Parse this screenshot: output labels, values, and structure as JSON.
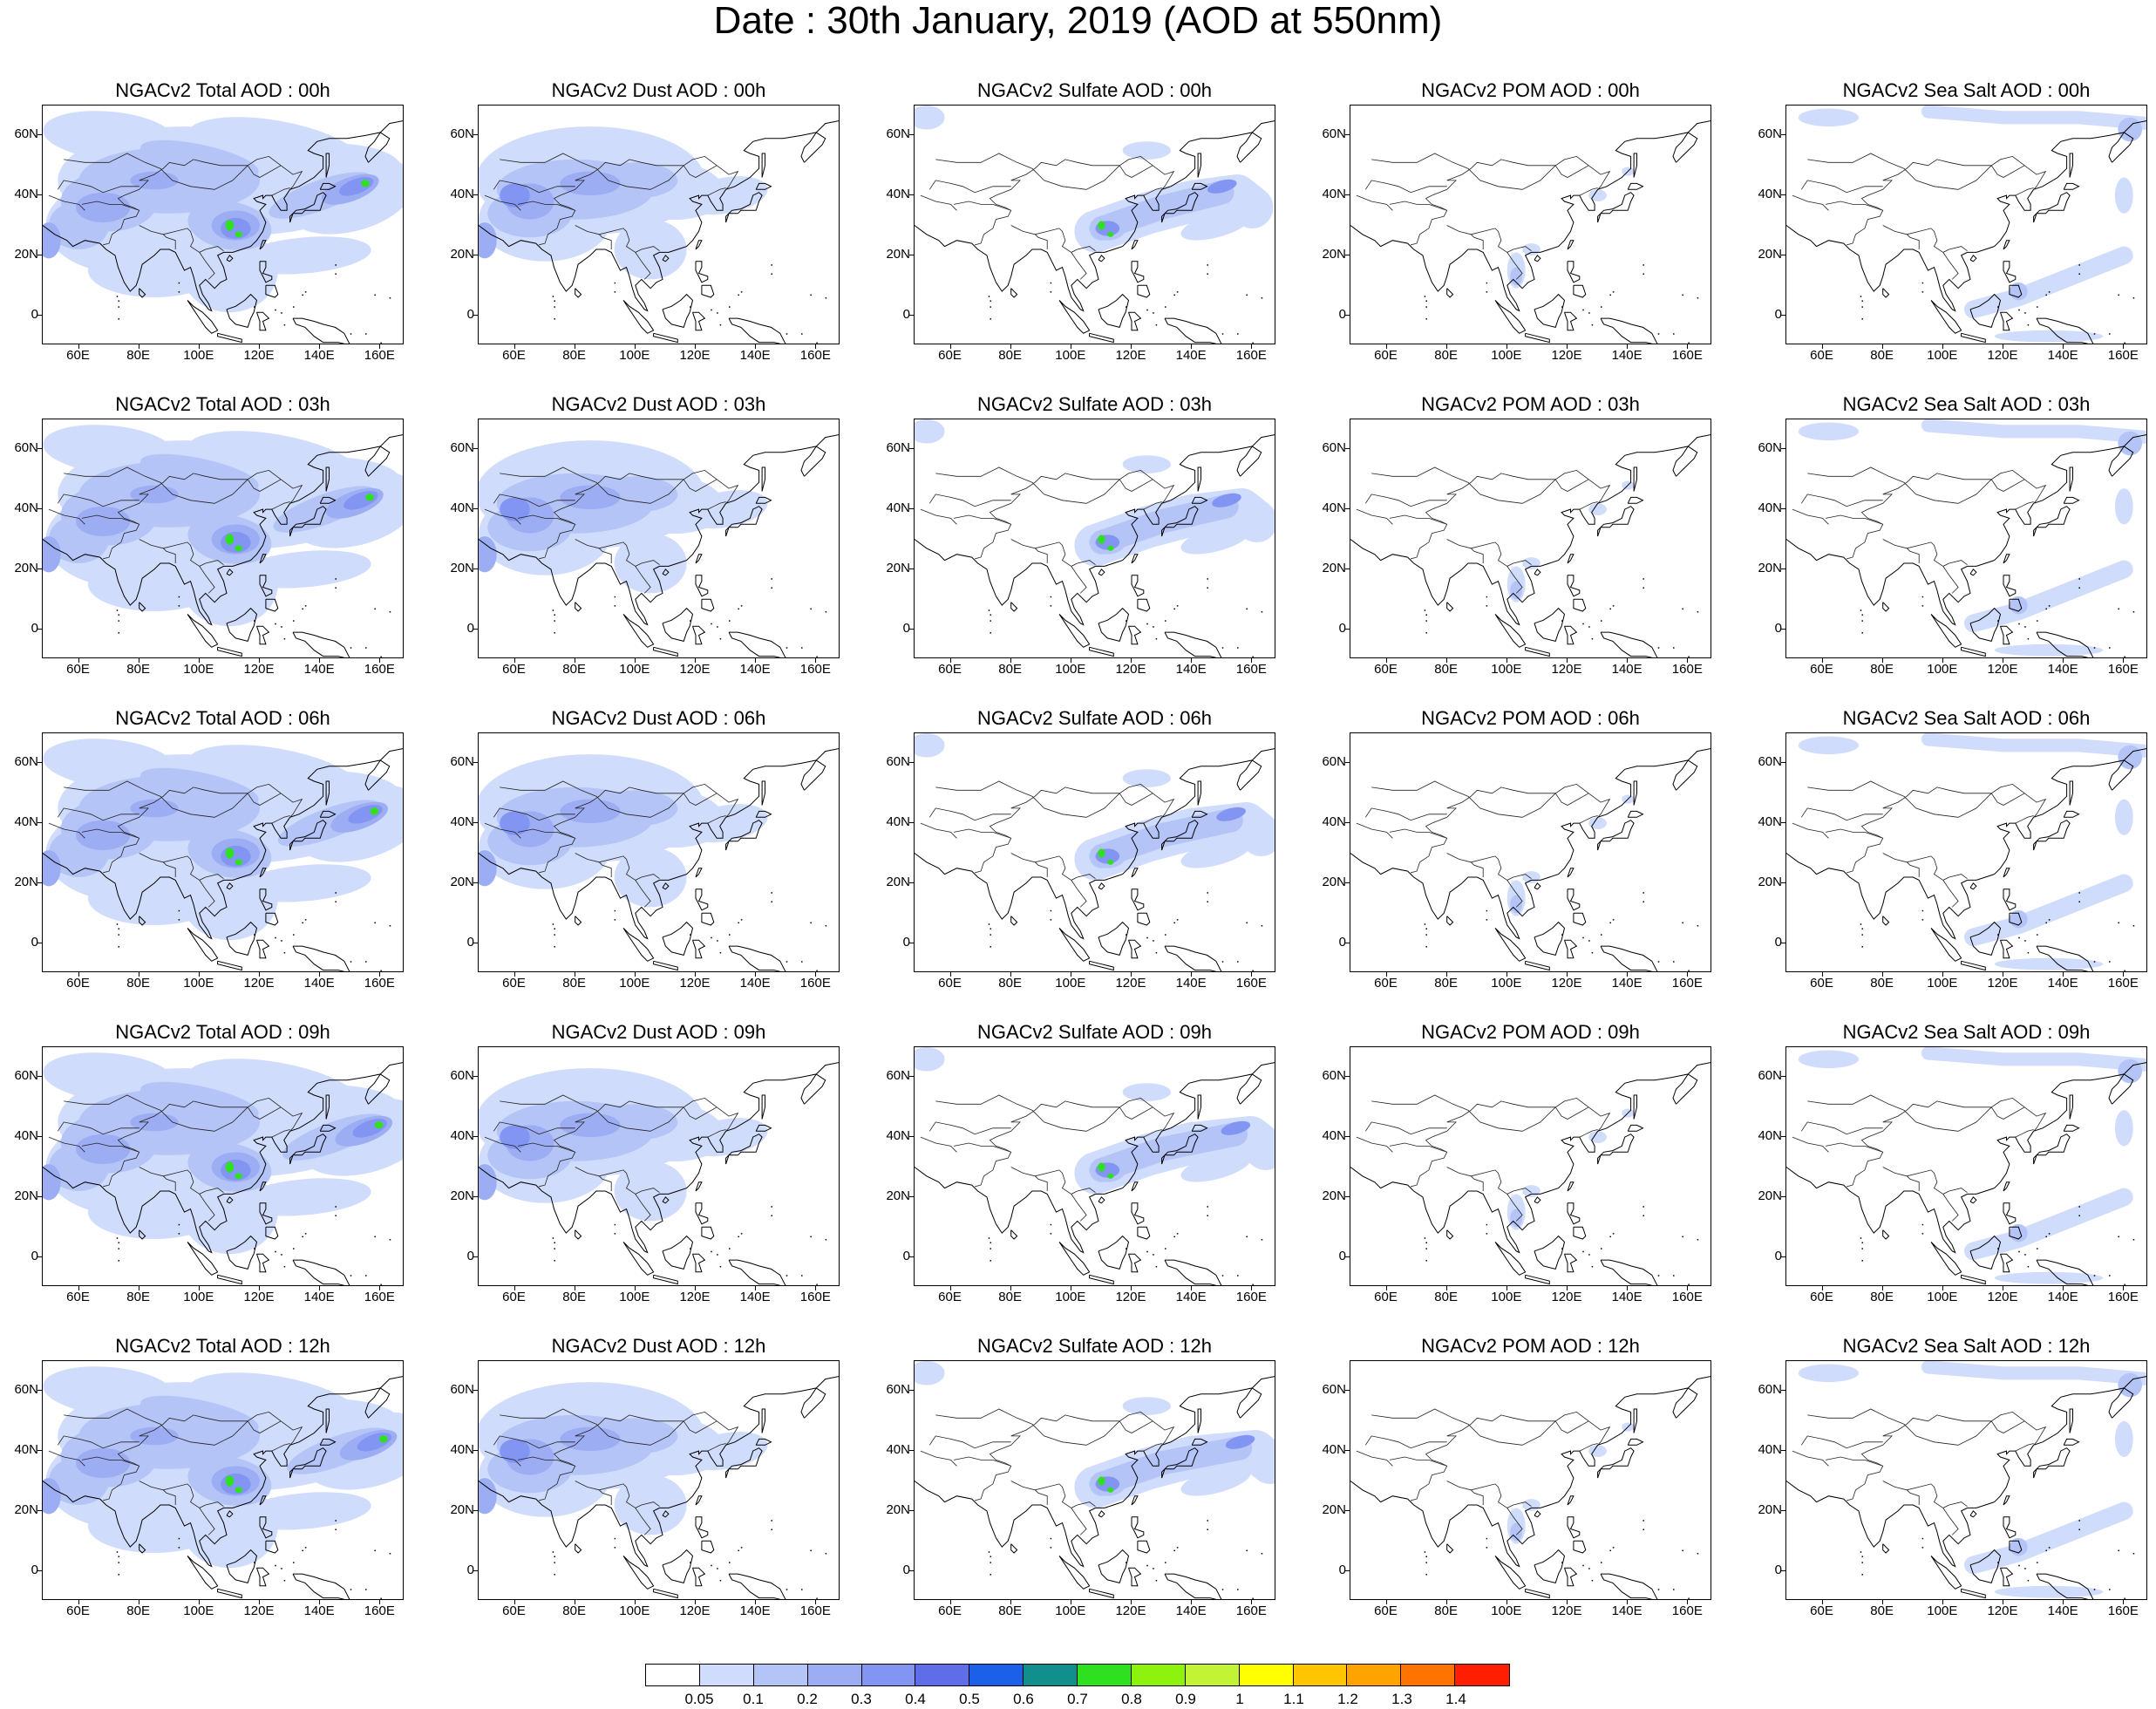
{
  "title": "Date : 30th January, 2019 (AOD at 550nm)",
  "map": {
    "lon_range": [
      48,
      168
    ],
    "lat_range": [
      -10,
      70
    ],
    "x_ticks": [
      "60E",
      "80E",
      "100E",
      "120E",
      "140E",
      "160E"
    ],
    "x_tick_values": [
      60,
      80,
      100,
      120,
      140,
      160
    ],
    "y_ticks": [
      "60N",
      "40N",
      "20N",
      "0"
    ],
    "y_tick_values": [
      60,
      40,
      20,
      0
    ]
  },
  "panels": [
    [
      {
        "title": "NGACv2 Total AOD : 00h",
        "species": "total"
      },
      {
        "title": "NGACv2 Dust AOD : 00h",
        "species": "dust"
      },
      {
        "title": "NGACv2 Sulfate AOD : 00h",
        "species": "sulfate"
      },
      {
        "title": "NGACv2 POM AOD : 00h",
        "species": "pom"
      },
      {
        "title": "NGACv2 Sea Salt AOD : 00h",
        "species": "seasalt"
      }
    ],
    [
      {
        "title": "NGACv2 Total AOD : 03h",
        "species": "total"
      },
      {
        "title": "NGACv2 Dust AOD : 03h",
        "species": "dust"
      },
      {
        "title": "NGACv2 Sulfate AOD : 03h",
        "species": "sulfate"
      },
      {
        "title": "NGACv2 POM AOD : 03h",
        "species": "pom"
      },
      {
        "title": "NGACv2 Sea Salt AOD : 03h",
        "species": "seasalt"
      }
    ],
    [
      {
        "title": "NGACv2 Total AOD : 06h",
        "species": "total"
      },
      {
        "title": "NGACv2 Dust AOD : 06h",
        "species": "dust"
      },
      {
        "title": "NGACv2 Sulfate AOD : 06h",
        "species": "sulfate"
      },
      {
        "title": "NGACv2 POM AOD : 06h",
        "species": "pom"
      },
      {
        "title": "NGACv2 Sea Salt AOD : 06h",
        "species": "seasalt"
      }
    ],
    [
      {
        "title": "NGACv2 Total AOD : 09h",
        "species": "total"
      },
      {
        "title": "NGACv2 Dust AOD : 09h",
        "species": "dust"
      },
      {
        "title": "NGACv2 Sulfate AOD : 09h",
        "species": "sulfate"
      },
      {
        "title": "NGACv2 POM AOD : 09h",
        "species": "pom"
      },
      {
        "title": "NGACv2 Sea Salt  AOD : 09h",
        "species": "seasalt"
      }
    ],
    [
      {
        "title": "NGACv2 Total AOD  : 12h",
        "species": "total"
      },
      {
        "title": "NGACv2 Dust AOD : 12h",
        "species": "dust"
      },
      {
        "title": "NGACv2 Sulfate AOD : 12h",
        "species": "sulfate"
      },
      {
        "title": "NGACv2 POM  AOD : 12h",
        "species": "pom"
      },
      {
        "title": "NGACv2 Sea Salt  AOD : 12h",
        "species": "seasalt"
      }
    ]
  ],
  "colorbar": {
    "colors": [
      "#ffffff",
      "#d0dcfb",
      "#b4c4f7",
      "#9dadf4",
      "#8395f2",
      "#5f6ee8",
      "#1c5fe8",
      "#118f8c",
      "#2fe021",
      "#8df20d",
      "#c2f435",
      "#ffff00",
      "#ffc500",
      "#ffa300",
      "#ff7400",
      "#ff1f00"
    ],
    "labels": [
      "0.05",
      "0.1",
      "0.2",
      "0.3",
      "0.4",
      "0.5",
      "0.6",
      "0.7",
      "0.8",
      "0.9",
      "1",
      "1.1",
      "1.2",
      "1.3",
      "1.4"
    ]
  },
  "colors": {
    "level1": "#d0dcfb",
    "level2": "#b4c4f7",
    "level3": "#9dadf4",
    "level4": "#8395f2",
    "level5": "#5f6ee8",
    "level8": "#2fe021",
    "level9": "#8df20d"
  }
}
